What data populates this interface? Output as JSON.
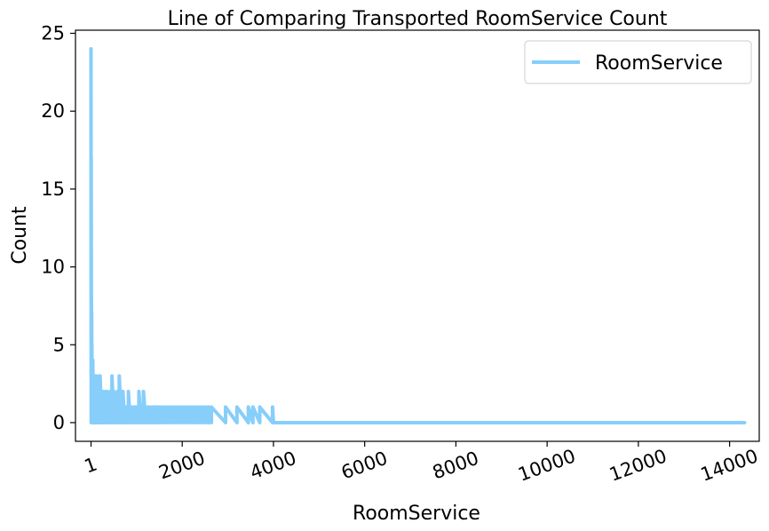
{
  "chart_data": {
    "type": "line",
    "title": "Line of Comparing Transported RoomService Count",
    "xlabel": "RoomService",
    "ylabel": "Count",
    "xlim": [
      -340,
      14650
    ],
    "ylim": [
      -1.2,
      25.2
    ],
    "x_ticks": [
      {
        "value": 1,
        "label": "1"
      },
      {
        "value": 2000,
        "label": "2000"
      },
      {
        "value": 4000,
        "label": "4000"
      },
      {
        "value": 6000,
        "label": "6000"
      },
      {
        "value": 8000,
        "label": "8000"
      },
      {
        "value": 10000,
        "label": "10000"
      },
      {
        "value": 12000,
        "label": "12000"
      },
      {
        "value": 14000,
        "label": "14000"
      }
    ],
    "y_ticks": [
      {
        "value": 0,
        "label": "0"
      },
      {
        "value": 5,
        "label": "5"
      },
      {
        "value": 10,
        "label": "10"
      },
      {
        "value": 15,
        "label": "15"
      },
      {
        "value": 20,
        "label": "20"
      },
      {
        "value": 25,
        "label": "25"
      }
    ],
    "grid": false,
    "legend_position": "top-right",
    "series": [
      {
        "name": "RoomService",
        "color": "#87CEFA",
        "x": [
          0,
          5,
          10,
          15,
          20,
          25,
          30,
          40,
          50,
          60,
          70,
          80,
          100,
          120,
          140,
          160,
          180,
          200,
          230,
          260,
          290,
          320,
          350,
          380,
          420,
          460,
          500,
          540,
          580,
          620,
          660,
          700,
          740,
          780,
          820,
          860,
          900,
          950,
          1000,
          1050,
          1100,
          1150,
          1200,
          1250,
          1300,
          1350,
          1400,
          1450,
          1500,
          1560,
          1620,
          1680,
          1740,
          1800,
          1860,
          1920,
          1980,
          2040,
          2100,
          2160,
          2220,
          2280,
          2340,
          2400,
          2460,
          2520,
          2580,
          2640,
          2950,
          3200,
          3450,
          3550,
          3700,
          3980,
          4000,
          14327
        ],
        "y": [
          24,
          17,
          8,
          7,
          5,
          4,
          3,
          4,
          3,
          2,
          3,
          2,
          3,
          2,
          2,
          3,
          2,
          3,
          2,
          2,
          1,
          2,
          2,
          1,
          2,
          3,
          2,
          1,
          2,
          3,
          2,
          2,
          1,
          1,
          2,
          1,
          1,
          1,
          1,
          2,
          1,
          2,
          1,
          1,
          1,
          1,
          1,
          1,
          1,
          1,
          1,
          1,
          1,
          1,
          1,
          1,
          1,
          1,
          1,
          1,
          1,
          1,
          1,
          1,
          1,
          1,
          1,
          1,
          1,
          1,
          1,
          1,
          1,
          1,
          0,
          0
        ]
      }
    ]
  }
}
